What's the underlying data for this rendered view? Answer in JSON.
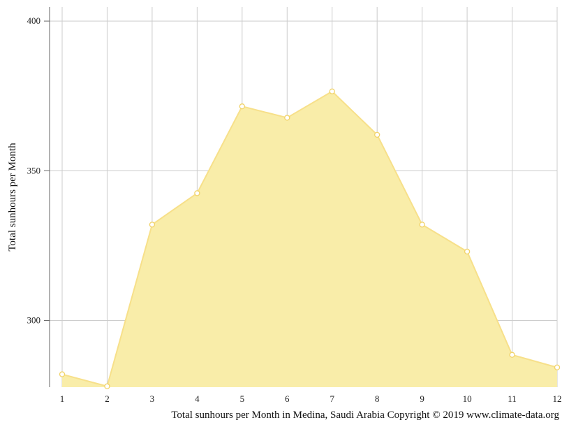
{
  "chart_data": {
    "type": "area",
    "x": [
      1,
      2,
      3,
      4,
      5,
      6,
      7,
      8,
      9,
      10,
      11,
      12
    ],
    "series": [
      {
        "values": [
          282,
          278,
          332,
          342.5,
          371.5,
          367.7,
          376.5,
          362,
          332,
          323,
          288.5,
          284.3
        ],
        "color": "#f9eda9",
        "line_color": "#f7e08a"
      }
    ],
    "ylabel": "Total sunhours per Month",
    "xlabel": "",
    "caption": "Total sunhours per Month in Medina, Saudi Arabia Copyright © 2019 www.climate-data.org",
    "yticks": [
      300,
      350,
      400
    ],
    "ylim": [
      277.7,
      404.7
    ],
    "xlim": [
      1,
      12
    ],
    "grid": true
  }
}
